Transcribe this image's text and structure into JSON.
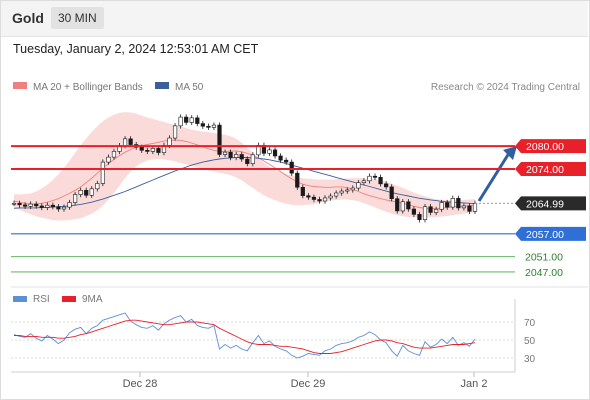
{
  "header": {
    "symbol": "Gold",
    "timeframe": "30 MIN"
  },
  "datetime": "Tuesday, January 2, 2024 12:53:01 AM CET",
  "legend": {
    "bb": "MA 20 + Bollinger Bands",
    "ma50": "MA 50",
    "copyright": "Research © 2024 Trading Central"
  },
  "rsi_legend": {
    "rsi": "RSI",
    "ma9": "9MA"
  },
  "colors": {
    "resistance": "#e8202a",
    "support": "#2f6fd6",
    "target": "#4aa84a",
    "bb_fill": "#fbdada",
    "ma20": "#f08080",
    "ma50": "#3a5f9a",
    "rsi": "#5b8fd6",
    "rsi_ma": "#e8202a",
    "arrow": "#2f5f9f"
  },
  "chart_data": [
    {
      "type": "line",
      "name": "price",
      "x_ticks": [
        "Dec 28",
        "Dec 29",
        "Jan 2"
      ],
      "levels": [
        {
          "label": "2080.00",
          "value": 2080.0,
          "kind": "resistance"
        },
        {
          "label": "2074.00",
          "value": 2074.0,
          "kind": "resistance"
        },
        {
          "label": "2064.99",
          "value": 2064.99,
          "kind": "last"
        },
        {
          "label": "2057.00",
          "value": 2057.0,
          "kind": "support"
        },
        {
          "label": "2051.00",
          "value": 2051.0,
          "kind": "target"
        },
        {
          "label": "2047.00",
          "value": 2047.0,
          "kind": "target"
        }
      ],
      "close": [
        2065.0,
        2064.6,
        2064.2,
        2064.8,
        2064.3,
        2063.9,
        2064.5,
        2064.1,
        2063.5,
        2064.0,
        2065.2,
        2067.3,
        2068.4,
        2067.1,
        2068.8,
        2070.2,
        2075.8,
        2077.1,
        2078.6,
        2080.1,
        2081.9,
        2080.4,
        2079.7,
        2078.9,
        2078.6,
        2079.4,
        2078.3,
        2080.2,
        2082.1,
        2085.3,
        2087.6,
        2086.2,
        2087.4,
        2085.9,
        2085.2,
        2084.9,
        2085.5,
        2077.8,
        2078.4,
        2077.0,
        2077.8,
        2076.6,
        2075.4,
        2077.7,
        2080.2,
        2078.1,
        2079.0,
        2077.4,
        2076.3,
        2075.8,
        2072.9,
        2069.2,
        2067.0,
        2066.6,
        2066.0,
        2065.6,
        2066.4,
        2066.9,
        2067.7,
        2068.2,
        2068.5,
        2069.0,
        2070.4,
        2070.9,
        2072.1,
        2071.8,
        2070.1,
        2069.3,
        2066.2,
        2063.0,
        2065.4,
        2063.5,
        2062.1,
        2060.7,
        2064.1,
        2062.6,
        2063.4,
        2065.2,
        2064.0,
        2066.3,
        2063.8,
        2064.3,
        2062.9,
        2064.99
      ],
      "ma20": [
        2065.6,
        2065.3,
        2065.0,
        2064.8,
        2064.8,
        2065.0,
        2065.3,
        2065.7,
        2066.2,
        2066.9,
        2067.6,
        2068.4,
        2069.3,
        2070.4,
        2071.6,
        2072.9,
        2074.2,
        2075.4,
        2076.5,
        2077.5,
        2078.4,
        2079.1,
        2079.7,
        2080.1,
        2080.4,
        2080.7,
        2081.0,
        2081.3,
        2081.5,
        2081.6,
        2081.5,
        2081.2,
        2080.8,
        2080.3,
        2079.8,
        2079.3,
        2078.9,
        2078.6,
        2078.6,
        2078.7,
        2078.7,
        2078.5,
        2078.1,
        2077.6,
        2076.9,
        2076.1,
        2075.2,
        2074.3,
        2073.3,
        2072.3,
        2071.4,
        2070.6,
        2070.0,
        2069.6,
        2069.4,
        2069.3,
        2069.2,
        2069.2,
        2069.3,
        2069.3,
        2069.1,
        2068.7,
        2068.1,
        2067.5,
        2067.0,
        2066.6,
        2066.2,
        2065.9,
        2065.6,
        2065.3,
        2065.0,
        2064.6,
        2064.2,
        2063.9,
        2063.7,
        2063.6,
        2063.6,
        2063.7,
        2063.9,
        2064.1,
        2064.2,
        2064.3,
        2064.4,
        2064.5
      ],
      "bb_upper": [
        2067.4,
        2067.3,
        2067.4,
        2067.6,
        2068.1,
        2068.9,
        2069.9,
        2071.1,
        2072.6,
        2074.3,
        2076.2,
        2078.2,
        2080.2,
        2082.0,
        2083.7,
        2085.2,
        2086.5,
        2087.5,
        2088.2,
        2088.7,
        2088.9,
        2088.8,
        2088.5,
        2088.0,
        2087.5,
        2087.1,
        2086.7,
        2086.3,
        2085.9,
        2085.5,
        2085.1,
        2084.7,
        2084.3,
        2084.0,
        2083.8,
        2083.6,
        2083.4,
        2083.2,
        2083.0,
        2082.6,
        2081.9,
        2080.9,
        2079.6,
        2078.2,
        2076.8,
        2075.6,
        2074.6,
        2073.8,
        2073.2,
        2072.7,
        2072.3,
        2071.9,
        2071.6,
        2071.4,
        2071.3,
        2071.2,
        2071.2,
        2071.2,
        2071.3,
        2071.4,
        2071.5,
        2071.6,
        2071.6,
        2071.6,
        2071.5,
        2071.3,
        2071.0,
        2070.6,
        2070.1,
        2069.6,
        2069.0,
        2068.4,
        2067.8,
        2067.3,
        2066.8,
        2066.4,
        2066.1,
        2065.9,
        2065.8,
        2065.8,
        2065.8,
        2065.9,
        2066.0,
        2066.1
      ],
      "bb_lower": [
        2063.8,
        2063.3,
        2062.7,
        2062.1,
        2061.6,
        2061.2,
        2060.9,
        2060.6,
        2060.5,
        2060.5,
        2060.6,
        2060.8,
        2061.1,
        2061.6,
        2062.3,
        2063.2,
        2064.4,
        2065.9,
        2067.7,
        2069.6,
        2071.6,
        2073.3,
        2074.7,
        2075.6,
        2076.2,
        2076.5,
        2076.6,
        2076.5,
        2076.3,
        2076.0,
        2075.6,
        2075.2,
        2074.8,
        2074.4,
        2074.0,
        2073.6,
        2073.3,
        2073.0,
        2072.7,
        2072.4,
        2071.8,
        2071.0,
        2070.0,
        2069.0,
        2068.0,
        2067.1,
        2066.4,
        2065.8,
        2065.3,
        2064.9,
        2064.6,
        2064.5,
        2064.5,
        2064.6,
        2064.8,
        2065.1,
        2065.4,
        2065.7,
        2065.9,
        2066.0,
        2066.0,
        2065.8,
        2065.5,
        2065.0,
        2064.5,
        2063.9,
        2063.3,
        2062.8,
        2062.3,
        2061.9,
        2061.6,
        2061.4,
        2061.3,
        2061.3,
        2061.3,
        2061.3,
        2061.4,
        2061.5,
        2061.7,
        2061.9,
        2062.1,
        2062.3,
        2062.5,
        2062.7
      ],
      "ma50": [
        2063.7,
        2063.8,
        2063.8,
        2063.8,
        2063.8,
        2063.9,
        2063.9,
        2064.0,
        2064.1,
        2064.2,
        2064.3,
        2064.5,
        2064.7,
        2065.0,
        2065.3,
        2065.7,
        2066.1,
        2066.6,
        2067.1,
        2067.6,
        2068.1,
        2068.7,
        2069.3,
        2069.9,
        2070.5,
        2071.1,
        2071.7,
        2072.3,
        2072.9,
        2073.5,
        2074.0,
        2074.5,
        2075.0,
        2075.4,
        2075.8,
        2076.1,
        2076.4,
        2076.6,
        2076.8,
        2076.9,
        2077.0,
        2077.0,
        2077.0,
        2076.9,
        2076.8,
        2076.6,
        2076.4,
        2076.1,
        2075.8,
        2075.4,
        2075.0,
        2074.6,
        2074.2,
        2073.8,
        2073.4,
        2073.0,
        2072.6,
        2072.2,
        2071.8,
        2071.4,
        2071.0,
        2070.6,
        2070.2,
        2069.8,
        2069.4,
        2069.0,
        2068.6,
        2068.2,
        2067.8,
        2067.5,
        2067.2,
        2066.9,
        2066.6,
        2066.3,
        2066.1,
        2065.9,
        2065.7,
        2065.5,
        2065.4,
        2065.3,
        2065.2,
        2065.1,
        2065.0,
        2064.9
      ]
    },
    {
      "type": "line",
      "name": "RSI",
      "y_ticks": [
        70,
        50,
        30
      ],
      "ylim": [
        20,
        80
      ],
      "rsi": [
        56,
        54,
        53,
        57,
        52,
        49,
        55,
        51,
        46,
        50,
        58,
        62,
        64,
        57,
        63,
        66,
        72,
        74,
        76,
        78,
        80,
        71,
        67,
        64,
        63,
        66,
        61,
        68,
        72,
        75,
        77,
        70,
        73,
        66,
        64,
        63,
        66,
        40,
        45,
        41,
        44,
        40,
        38,
        47,
        55,
        46,
        49,
        43,
        40,
        38,
        33,
        30,
        32,
        35,
        34,
        33,
        38,
        40,
        44,
        46,
        47,
        49,
        53,
        55,
        59,
        56,
        50,
        47,
        38,
        32,
        44,
        38,
        35,
        33,
        48,
        42,
        45,
        51,
        46,
        53,
        44,
        47,
        43,
        51
      ],
      "rsi_ma": [
        55,
        55,
        54,
        54,
        54,
        53,
        53,
        53,
        52,
        52,
        53,
        54,
        56,
        57,
        59,
        61,
        63,
        65,
        67,
        69,
        71,
        72,
        72,
        71,
        70,
        69,
        68,
        67,
        67,
        68,
        69,
        70,
        70,
        70,
        69,
        68,
        67,
        63,
        60,
        57,
        54,
        51,
        48,
        46,
        45,
        45,
        45,
        44,
        43,
        43,
        42,
        41,
        40,
        38,
        36,
        35,
        35,
        35,
        36,
        37,
        39,
        41,
        43,
        45,
        47,
        49,
        50,
        50,
        49,
        47,
        46,
        44,
        42,
        41,
        41,
        41,
        42,
        43,
        44,
        45,
        45,
        45,
        46,
        47
      ]
    }
  ]
}
